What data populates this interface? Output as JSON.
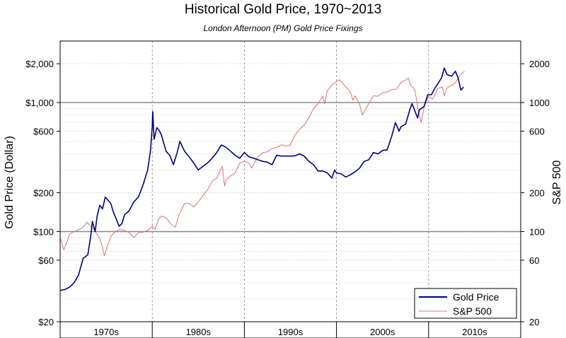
{
  "chart_data": {
    "type": "line",
    "title": "Historical Gold Price, 1970~2013",
    "subtitle": "London Afternoon (PM) Gold Price Fixings",
    "ylabel_left": "Gold Price (Dollar)",
    "ylabel_right": "S&P 500",
    "scale": "log",
    "ylim": [
      20,
      3000
    ],
    "grid": true,
    "legend_position": "bottom-right",
    "x_categories": [
      "1970s",
      "1980s",
      "1990s",
      "2000s",
      "2010s"
    ],
    "xlim": [
      1970,
      2020
    ],
    "left_ticks": [
      {
        "value": 2000,
        "label": "$2,000"
      },
      {
        "value": 1000,
        "label": "$1,000"
      },
      {
        "value": 600,
        "label": "$600"
      },
      {
        "value": 200,
        "label": "$200"
      },
      {
        "value": 100,
        "label": "$100"
      },
      {
        "value": 60,
        "label": "$60"
      },
      {
        "value": 20,
        "label": "$20"
      }
    ],
    "right_ticks": [
      {
        "value": 2000,
        "label": "2000"
      },
      {
        "value": 1000,
        "label": "1000"
      },
      {
        "value": 600,
        "label": "600"
      },
      {
        "value": 200,
        "label": "200"
      },
      {
        "value": 100,
        "label": "100"
      },
      {
        "value": 60,
        "label": "60"
      },
      {
        "value": 20,
        "label": "20"
      }
    ],
    "series": [
      {
        "name": "Gold Price",
        "color": "#000080",
        "points": [
          [
            1970.0,
            35
          ],
          [
            1970.5,
            35.5
          ],
          [
            1971.0,
            37
          ],
          [
            1971.5,
            40
          ],
          [
            1972.0,
            46
          ],
          [
            1972.5,
            62
          ],
          [
            1973.0,
            66
          ],
          [
            1973.3,
            90
          ],
          [
            1973.5,
            120
          ],
          [
            1973.8,
            100
          ],
          [
            1974.0,
            130
          ],
          [
            1974.3,
            160
          ],
          [
            1974.6,
            150
          ],
          [
            1974.9,
            185
          ],
          [
            1975.2,
            175
          ],
          [
            1975.5,
            165
          ],
          [
            1975.8,
            140
          ],
          [
            1976.0,
            130
          ],
          [
            1976.4,
            110
          ],
          [
            1976.7,
            115
          ],
          [
            1977.0,
            135
          ],
          [
            1977.5,
            145
          ],
          [
            1978.0,
            170
          ],
          [
            1978.5,
            185
          ],
          [
            1979.0,
            230
          ],
          [
            1979.5,
            300
          ],
          [
            1979.8,
            420
          ],
          [
            1980.0,
            650
          ],
          [
            1980.05,
            850
          ],
          [
            1980.2,
            520
          ],
          [
            1980.5,
            640
          ],
          [
            1980.8,
            600
          ],
          [
            1981.0,
            560
          ],
          [
            1981.5,
            420
          ],
          [
            1981.9,
            390
          ],
          [
            1982.3,
            330
          ],
          [
            1982.7,
            410
          ],
          [
            1983.0,
            500
          ],
          [
            1983.5,
            420
          ],
          [
            1984.0,
            380
          ],
          [
            1984.5,
            340
          ],
          [
            1985.0,
            300
          ],
          [
            1985.5,
            320
          ],
          [
            1986.0,
            340
          ],
          [
            1986.5,
            370
          ],
          [
            1987.0,
            410
          ],
          [
            1987.5,
            470
          ],
          [
            1988.0,
            450
          ],
          [
            1988.5,
            420
          ],
          [
            1989.0,
            390
          ],
          [
            1989.5,
            370
          ],
          [
            1990.0,
            410
          ],
          [
            1990.5,
            380
          ],
          [
            1991.0,
            370
          ],
          [
            1991.5,
            360
          ],
          [
            1992.0,
            350
          ],
          [
            1992.5,
            345
          ],
          [
            1993.0,
            330
          ],
          [
            1993.5,
            390
          ],
          [
            1994.0,
            385
          ],
          [
            1994.5,
            385
          ],
          [
            1995.0,
            385
          ],
          [
            1995.5,
            387
          ],
          [
            1996.0,
            400
          ],
          [
            1996.5,
            385
          ],
          [
            1997.0,
            350
          ],
          [
            1997.5,
            330
          ],
          [
            1998.0,
            295
          ],
          [
            1998.5,
            295
          ],
          [
            1999.0,
            285
          ],
          [
            1999.5,
            260
          ],
          [
            1999.8,
            300
          ],
          [
            2000.0,
            285
          ],
          [
            2000.5,
            280
          ],
          [
            2001.0,
            265
          ],
          [
            2001.5,
            275
          ],
          [
            2002.0,
            290
          ],
          [
            2002.5,
            310
          ],
          [
            2003.0,
            350
          ],
          [
            2003.5,
            360
          ],
          [
            2004.0,
            410
          ],
          [
            2004.5,
            400
          ],
          [
            2005.0,
            425
          ],
          [
            2005.5,
            430
          ],
          [
            2006.0,
            550
          ],
          [
            2006.4,
            700
          ],
          [
            2006.8,
            600
          ],
          [
            2007.0,
            650
          ],
          [
            2007.5,
            680
          ],
          [
            2008.0,
            900
          ],
          [
            2008.2,
            980
          ],
          [
            2008.8,
            760
          ],
          [
            2009.0,
            880
          ],
          [
            2009.5,
            930
          ],
          [
            2009.9,
            1150
          ],
          [
            2010.3,
            1150
          ],
          [
            2010.7,
            1300
          ],
          [
            2011.0,
            1400
          ],
          [
            2011.4,
            1550
          ],
          [
            2011.7,
            1850
          ],
          [
            2012.0,
            1650
          ],
          [
            2012.5,
            1600
          ],
          [
            2012.9,
            1750
          ],
          [
            2013.2,
            1550
          ],
          [
            2013.5,
            1250
          ],
          [
            2013.8,
            1320
          ]
        ]
      },
      {
        "name": "S&P 500",
        "color": "#e07070",
        "points": [
          [
            1970.0,
            90
          ],
          [
            1970.4,
            72
          ],
          [
            1970.8,
            85
          ],
          [
            1971.0,
            95
          ],
          [
            1971.5,
            100
          ],
          [
            1972.0,
            103
          ],
          [
            1972.5,
            108
          ],
          [
            1972.9,
            118
          ],
          [
            1973.2,
            112
          ],
          [
            1973.6,
            105
          ],
          [
            1973.9,
            98
          ],
          [
            1974.3,
            88
          ],
          [
            1974.6,
            75
          ],
          [
            1974.8,
            65
          ],
          [
            1975.0,
            72
          ],
          [
            1975.5,
            92
          ],
          [
            1976.0,
            100
          ],
          [
            1976.5,
            104
          ],
          [
            1977.0,
            102
          ],
          [
            1977.5,
            98
          ],
          [
            1978.0,
            90
          ],
          [
            1978.5,
            98
          ],
          [
            1979.0,
            99
          ],
          [
            1979.5,
            102
          ],
          [
            1980.0,
            110
          ],
          [
            1980.3,
            104
          ],
          [
            1980.7,
            125
          ],
          [
            1981.0,
            132
          ],
          [
            1981.5,
            128
          ],
          [
            1982.0,
            115
          ],
          [
            1982.5,
            108
          ],
          [
            1982.9,
            135
          ],
          [
            1983.5,
            165
          ],
          [
            1984.0,
            165
          ],
          [
            1984.5,
            155
          ],
          [
            1985.0,
            170
          ],
          [
            1985.5,
            190
          ],
          [
            1986.0,
            210
          ],
          [
            1986.5,
            245
          ],
          [
            1987.0,
            260
          ],
          [
            1987.6,
            320
          ],
          [
            1987.85,
            225
          ],
          [
            1988.0,
            250
          ],
          [
            1988.5,
            270
          ],
          [
            1989.0,
            285
          ],
          [
            1989.5,
            340
          ],
          [
            1990.0,
            350
          ],
          [
            1990.5,
            340
          ],
          [
            1990.8,
            310
          ],
          [
            1991.0,
            330
          ],
          [
            1991.5,
            380
          ],
          [
            1992.0,
            410
          ],
          [
            1992.5,
            415
          ],
          [
            1993.0,
            440
          ],
          [
            1993.5,
            450
          ],
          [
            1994.0,
            470
          ],
          [
            1994.5,
            460
          ],
          [
            1995.0,
            470
          ],
          [
            1995.5,
            560
          ],
          [
            1996.0,
            620
          ],
          [
            1996.5,
            670
          ],
          [
            1997.0,
            760
          ],
          [
            1997.5,
            900
          ],
          [
            1998.0,
            980
          ],
          [
            1998.5,
            1120
          ],
          [
            1998.7,
            980
          ],
          [
            1999.0,
            1230
          ],
          [
            1999.5,
            1370
          ],
          [
            2000.0,
            1450
          ],
          [
            2000.3,
            1500
          ],
          [
            2000.8,
            1380
          ],
          [
            2001.0,
            1320
          ],
          [
            2001.5,
            1220
          ],
          [
            2001.8,
            1040
          ],
          [
            2002.0,
            1130
          ],
          [
            2002.5,
            970
          ],
          [
            2002.8,
            800
          ],
          [
            2003.0,
            850
          ],
          [
            2003.5,
            980
          ],
          [
            2004.0,
            1130
          ],
          [
            2004.5,
            1120
          ],
          [
            2005.0,
            1190
          ],
          [
            2005.5,
            1210
          ],
          [
            2006.0,
            1260
          ],
          [
            2006.5,
            1270
          ],
          [
            2007.0,
            1430
          ],
          [
            2007.5,
            1500
          ],
          [
            2007.8,
            1550
          ],
          [
            2008.0,
            1380
          ],
          [
            2008.5,
            1260
          ],
          [
            2008.9,
            850
          ],
          [
            2009.2,
            700
          ],
          [
            2009.5,
            920
          ],
          [
            2010.0,
            1120
          ],
          [
            2010.4,
            1060
          ],
          [
            2010.8,
            1180
          ],
          [
            2011.0,
            1290
          ],
          [
            2011.5,
            1320
          ],
          [
            2011.7,
            1130
          ],
          [
            2012.0,
            1300
          ],
          [
            2012.5,
            1360
          ],
          [
            2012.9,
            1420
          ],
          [
            2013.2,
            1560
          ],
          [
            2013.5,
            1640
          ],
          [
            2013.9,
            1750
          ]
        ]
      }
    ]
  }
}
